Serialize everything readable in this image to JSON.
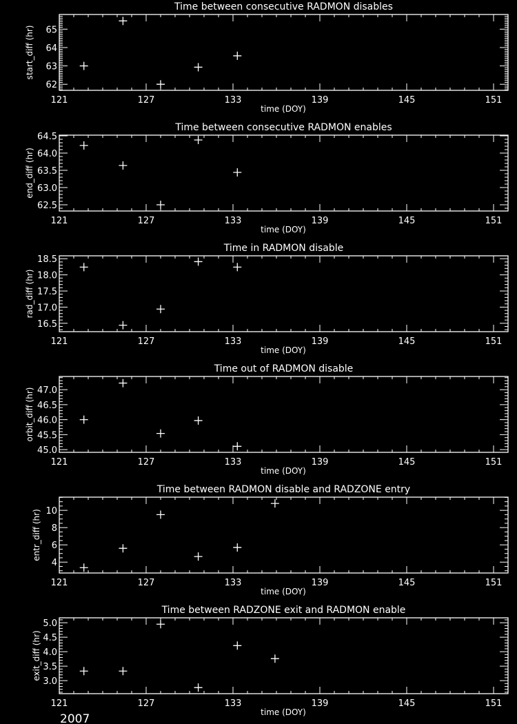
{
  "year_label": "2007",
  "colors": {
    "background": "#000000",
    "foreground": "#ffffff"
  },
  "chart_data": [
    {
      "type": "scatter",
      "title": "Time between consecutive RADMON disables",
      "xlabel": "time (DOY)",
      "ylabel": "start_diff (hr)",
      "xlim": [
        121,
        152
      ],
      "xticks": [
        121,
        127,
        133,
        139,
        145,
        151
      ],
      "ylim": [
        61.67,
        65.8
      ],
      "yticks": [
        "62",
        "63",
        "64",
        "65"
      ],
      "yminor": 10,
      "x": [
        122.7,
        125.4,
        128.0,
        130.6,
        133.3
      ],
      "y": [
        63.0,
        65.45,
        62.0,
        62.93,
        63.55
      ]
    },
    {
      "type": "scatter",
      "title": "Time between consecutive RADMON enables",
      "xlabel": "time (DOY)",
      "ylabel": "end_diff (hr)",
      "xlim": [
        121,
        152
      ],
      "xticks": [
        121,
        127,
        133,
        139,
        145,
        151
      ],
      "ylim": [
        62.32,
        64.52
      ],
      "yticks": [
        "62.5",
        "63.0",
        "63.5",
        "64.0",
        "64.5"
      ],
      "yminor": 5,
      "x": [
        122.7,
        125.4,
        128.0,
        130.6,
        133.3
      ],
      "y": [
        64.22,
        63.64,
        62.5,
        64.38,
        63.44
      ]
    },
    {
      "type": "scatter",
      "title": "Time in RADMON disable",
      "xlabel": "time (DOY)",
      "ylabel": "rad_diff (hr)",
      "xlim": [
        121,
        152
      ],
      "xticks": [
        121,
        127,
        133,
        139,
        145,
        151
      ],
      "ylim": [
        16.24,
        18.59
      ],
      "yticks": [
        "16.5",
        "17.0",
        "17.5",
        "18.0",
        "18.5"
      ],
      "yminor": 5,
      "x": [
        122.7,
        125.4,
        128.0,
        130.6,
        133.3
      ],
      "y": [
        18.24,
        16.44,
        16.94,
        18.41,
        18.24
      ]
    },
    {
      "type": "scatter",
      "title": "Time out of RADMON disable",
      "xlabel": "time (DOY)",
      "ylabel": "orbit_diff (hr)",
      "xlim": [
        121,
        152
      ],
      "xticks": [
        121,
        127,
        133,
        139,
        145,
        151
      ],
      "ylim": [
        44.91,
        47.44
      ],
      "yticks": [
        "45.0",
        "45.5",
        "46.0",
        "46.5",
        "47.0"
      ],
      "yminor": 5,
      "x": [
        122.7,
        125.4,
        128.0,
        130.6,
        133.3
      ],
      "y": [
        46.0,
        47.22,
        45.54,
        45.97,
        45.11
      ]
    },
    {
      "type": "scatter",
      "title": "Time between RADMON disable and RADZONE entry",
      "xlabel": "time (DOY)",
      "ylabel": "entr_diff (hr)",
      "xlim": [
        121,
        152
      ],
      "xticks": [
        121,
        127,
        133,
        139,
        145,
        151
      ],
      "ylim": [
        2.74,
        11.53
      ],
      "yticks": [
        "4",
        "6",
        "8",
        "10"
      ],
      "yminor": 4,
      "x": [
        122.7,
        125.4,
        128.0,
        130.6,
        133.3,
        135.9
      ],
      "y": [
        3.36,
        5.6,
        9.5,
        4.65,
        5.7,
        10.8
      ]
    },
    {
      "type": "scatter",
      "title": "Time between RADZONE exit and RADMON enable",
      "xlabel": "time (DOY)",
      "ylabel": "exit_diff (hr)",
      "xlim": [
        121,
        152
      ],
      "xticks": [
        121,
        127,
        133,
        139,
        145,
        151
      ],
      "ylim": [
        2.55,
        5.17
      ],
      "yticks": [
        "3.0",
        "3.5",
        "4.0",
        "4.5",
        "5.0"
      ],
      "yminor": 5,
      "x": [
        122.7,
        125.4,
        128.0,
        130.6,
        133.3,
        135.9
      ],
      "y": [
        3.33,
        3.33,
        4.95,
        2.76,
        4.21,
        3.76
      ]
    }
  ]
}
